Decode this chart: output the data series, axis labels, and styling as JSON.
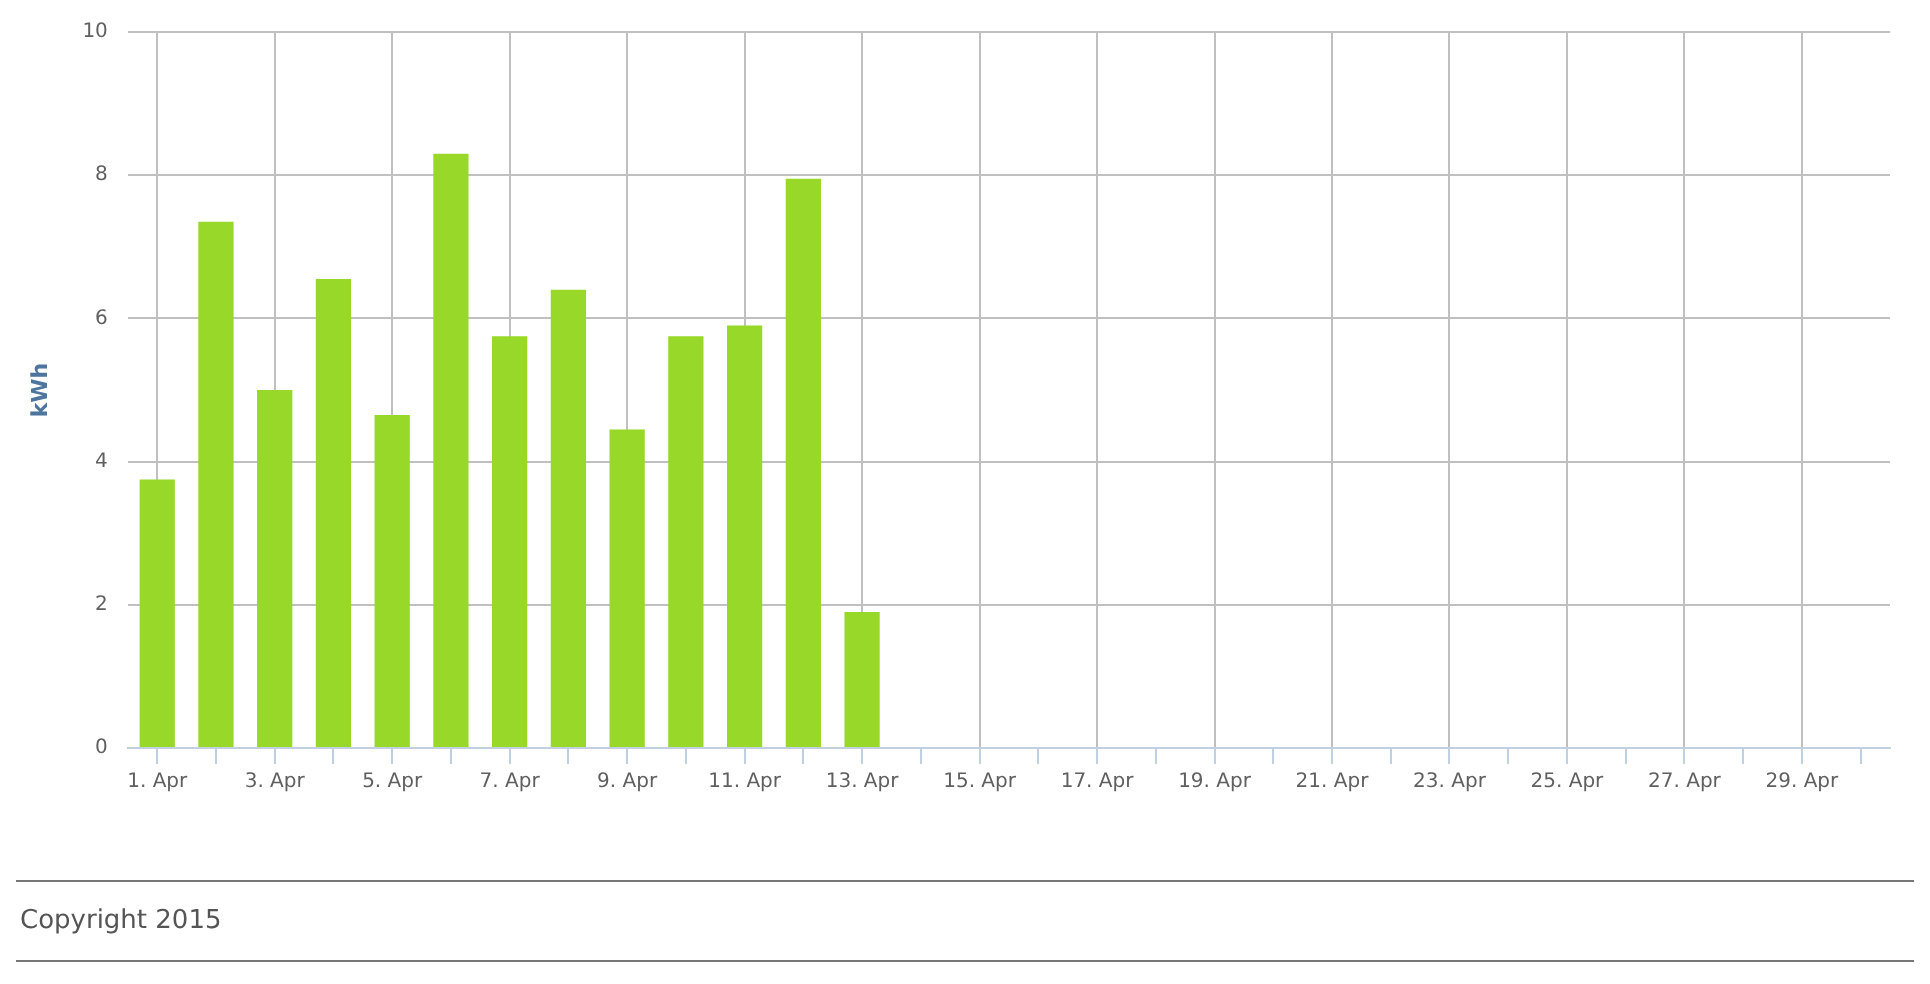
{
  "chart_data": {
    "type": "bar",
    "ylabel": "kWh",
    "categories": [
      "1. Apr",
      null,
      "3. Apr",
      null,
      "5. Apr",
      null,
      "7. Apr",
      null,
      "9. Apr",
      null,
      "11. Apr",
      null,
      "13. Apr",
      null,
      "15. Apr",
      null,
      "17. Apr",
      null,
      "19. Apr",
      null,
      "21. Apr",
      null,
      "23. Apr",
      null,
      "25. Apr",
      null,
      "27. Apr",
      null,
      "29. Apr",
      null
    ],
    "series": [
      {
        "color": "#97d828",
        "values": [
          3.75,
          7.35,
          5.0,
          6.55,
          4.65,
          8.3,
          5.75,
          6.4,
          4.45,
          5.75,
          5.9,
          7.95,
          1.9,
          null,
          null,
          null,
          null,
          null,
          null,
          null,
          null,
          null,
          null,
          null,
          null,
          null,
          null,
          null,
          null,
          null
        ]
      }
    ],
    "ylim": [
      0,
      10
    ],
    "yticks": [
      0,
      2,
      4,
      6,
      8,
      10
    ],
    "grid": true,
    "legend": false,
    "annotations": [
      "Copyright 2015"
    ]
  }
}
